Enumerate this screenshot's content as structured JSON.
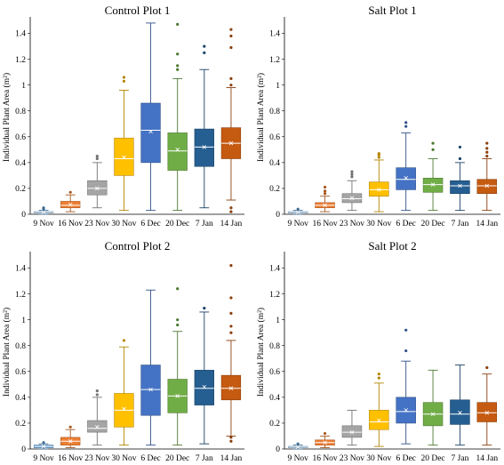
{
  "chart_data": [
    {
      "type": "box",
      "title": "Control Plot 1",
      "ylabel": "Individual Plant Area (m²)",
      "ylim": [
        0,
        1.5
      ],
      "yticks": [
        0,
        0.2,
        0.4,
        0.6,
        0.8,
        1,
        1.2,
        1.4
      ],
      "categories": [
        "9 Nov",
        "16 Nov",
        "23 Nov",
        "30 Nov",
        "6 Dec",
        "20 Dec",
        "7 Jan",
        "14 Jan"
      ],
      "boxes": [
        {
          "whislo": 0.0,
          "q1": 0.01,
          "med": 0.015,
          "q3": 0.02,
          "whishi": 0.03,
          "mean": 0.015,
          "fliers": [
            0.04,
            0.05
          ]
        },
        {
          "whislo": 0.02,
          "q1": 0.05,
          "med": 0.07,
          "q3": 0.1,
          "whishi": 0.15,
          "mean": 0.075,
          "fliers": [
            0.17
          ]
        },
        {
          "whislo": 0.05,
          "q1": 0.15,
          "med": 0.2,
          "q3": 0.26,
          "whishi": 0.4,
          "mean": 0.2,
          "fliers": [
            0.43,
            0.45
          ]
        },
        {
          "whislo": 0.03,
          "q1": 0.3,
          "med": 0.43,
          "q3": 0.59,
          "whishi": 0.96,
          "mean": 0.44,
          "fliers": [
            1.03,
            1.06
          ]
        },
        {
          "whislo": 0.03,
          "q1": 0.4,
          "med": 0.65,
          "q3": 0.86,
          "whishi": 1.48,
          "mean": 0.64,
          "fliers": []
        },
        {
          "whislo": 0.03,
          "q1": 0.34,
          "med": 0.49,
          "q3": 0.63,
          "whishi": 1.05,
          "mean": 0.5,
          "fliers": [
            1.12,
            1.15,
            1.24,
            1.47
          ]
        },
        {
          "whislo": 0.05,
          "q1": 0.37,
          "med": 0.52,
          "q3": 0.66,
          "whishi": 1.12,
          "mean": 0.52,
          "fliers": [
            1.25,
            1.3
          ]
        },
        {
          "whislo": 0.11,
          "q1": 0.43,
          "med": 0.55,
          "q3": 0.67,
          "whishi": 0.98,
          "mean": 0.55,
          "fliers": [
            0.02,
            0.05,
            1.0,
            1.05,
            1.29,
            1.38,
            1.43
          ]
        }
      ]
    },
    {
      "type": "box",
      "title": "Salt Plot 1",
      "ylabel": "Individual Plant Area (m²)",
      "ylim": [
        0,
        1.5
      ],
      "yticks": [
        0,
        0.2,
        0.4,
        0.6,
        0.8,
        1,
        1.2,
        1.4
      ],
      "categories": [
        "9 Nov",
        "16 Nov",
        "23 Nov",
        "30 Nov",
        "6 Dec",
        "20 Dec",
        "7 Jan",
        "14 Jan"
      ],
      "boxes": [
        {
          "whislo": 0.0,
          "q1": 0.01,
          "med": 0.015,
          "q3": 0.02,
          "whishi": 0.03,
          "mean": 0.015,
          "fliers": [
            0.04
          ]
        },
        {
          "whislo": 0.02,
          "q1": 0.05,
          "med": 0.07,
          "q3": 0.09,
          "whishi": 0.14,
          "mean": 0.07,
          "fliers": [
            0.16,
            0.18,
            0.21
          ]
        },
        {
          "whislo": 0.03,
          "q1": 0.09,
          "med": 0.12,
          "q3": 0.16,
          "whishi": 0.26,
          "mean": 0.125,
          "fliers": [
            0.29,
            0.31,
            0.33
          ]
        },
        {
          "whislo": 0.02,
          "q1": 0.14,
          "med": 0.19,
          "q3": 0.25,
          "whishi": 0.42,
          "mean": 0.19,
          "fliers": [
            0.44,
            0.46,
            0.47
          ]
        },
        {
          "whislo": 0.03,
          "q1": 0.19,
          "med": 0.27,
          "q3": 0.36,
          "whishi": 0.63,
          "mean": 0.28,
          "fliers": [
            0.68,
            0.71
          ]
        },
        {
          "whislo": 0.03,
          "q1": 0.17,
          "med": 0.23,
          "q3": 0.28,
          "whishi": 0.43,
          "mean": 0.23,
          "fliers": [
            0.5,
            0.55
          ]
        },
        {
          "whislo": 0.03,
          "q1": 0.16,
          "med": 0.22,
          "q3": 0.26,
          "whishi": 0.4,
          "mean": 0.22,
          "fliers": [
            0.43,
            0.52
          ]
        },
        {
          "whislo": 0.03,
          "q1": 0.16,
          "med": 0.22,
          "q3": 0.27,
          "whishi": 0.43,
          "mean": 0.22,
          "fliers": [
            0.45,
            0.48,
            0.51,
            0.55
          ]
        }
      ]
    },
    {
      "type": "box",
      "title": "Control Plot 2",
      "ylabel": "Individual Plant Area (m²)",
      "ylim": [
        0,
        1.5
      ],
      "yticks": [
        0,
        0.2,
        0.4,
        0.6,
        0.8,
        1,
        1.2,
        1.4
      ],
      "categories": [
        "9 Nov",
        "16 Nov",
        "23 Nov",
        "30 Nov",
        "6 Dec",
        "20 Dec",
        "7 Jan",
        "14 Jan"
      ],
      "boxes": [
        {
          "whislo": 0.0,
          "q1": 0.01,
          "med": 0.02,
          "q3": 0.03,
          "whishi": 0.04,
          "mean": 0.02,
          "fliers": [
            0.05
          ]
        },
        {
          "whislo": 0.01,
          "q1": 0.03,
          "med": 0.06,
          "q3": 0.09,
          "whishi": 0.15,
          "mean": 0.06,
          "fliers": [
            0.17
          ]
        },
        {
          "whislo": 0.03,
          "q1": 0.13,
          "med": 0.16,
          "q3": 0.22,
          "whishi": 0.4,
          "mean": 0.17,
          "fliers": [
            0.42,
            0.45
          ]
        },
        {
          "whislo": 0.03,
          "q1": 0.17,
          "med": 0.3,
          "q3": 0.43,
          "whishi": 0.79,
          "mean": 0.31,
          "fliers": [
            0.84
          ]
        },
        {
          "whislo": 0.03,
          "q1": 0.26,
          "med": 0.46,
          "q3": 0.65,
          "whishi": 1.23,
          "mean": 0.46,
          "fliers": []
        },
        {
          "whislo": 0.03,
          "q1": 0.28,
          "med": 0.41,
          "q3": 0.54,
          "whishi": 0.91,
          "mean": 0.41,
          "fliers": [
            0.96,
            1.0,
            1.24
          ]
        },
        {
          "whislo": 0.04,
          "q1": 0.34,
          "med": 0.47,
          "q3": 0.61,
          "whishi": 1.06,
          "mean": 0.48,
          "fliers": [
            1.09
          ]
        },
        {
          "whislo": 0.1,
          "q1": 0.38,
          "med": 0.47,
          "q3": 0.57,
          "whishi": 0.84,
          "mean": 0.47,
          "fliers": [
            0.06,
            0.09,
            0.9,
            0.95,
            1.05,
            1.17,
            1.42
          ]
        }
      ]
    },
    {
      "type": "box",
      "title": "Salt Plot 2",
      "ylabel": "Individual Plant Area (m²)",
      "ylim": [
        0,
        1.5
      ],
      "yticks": [
        0,
        0.2,
        0.4,
        0.6,
        0.8,
        1,
        1.2,
        1.4
      ],
      "categories": [
        "9 Nov",
        "16 Nov",
        "23 Nov",
        "30 Nov",
        "6 Dec",
        "20 Dec",
        "7 Jan",
        "14 Jan"
      ],
      "boxes": [
        {
          "whislo": 0.0,
          "q1": 0.01,
          "med": 0.015,
          "q3": 0.02,
          "whishi": 0.03,
          "mean": 0.015,
          "fliers": [
            0.04
          ]
        },
        {
          "whislo": 0.01,
          "q1": 0.03,
          "med": 0.05,
          "q3": 0.07,
          "whishi": 0.1,
          "mean": 0.05,
          "fliers": [
            0.12
          ]
        },
        {
          "whislo": 0.03,
          "q1": 0.09,
          "med": 0.13,
          "q3": 0.18,
          "whishi": 0.3,
          "mean": 0.13,
          "fliers": []
        },
        {
          "whislo": 0.02,
          "q1": 0.15,
          "med": 0.21,
          "q3": 0.3,
          "whishi": 0.51,
          "mean": 0.22,
          "fliers": [
            0.55,
            0.58
          ]
        },
        {
          "whislo": 0.04,
          "q1": 0.2,
          "med": 0.29,
          "q3": 0.4,
          "whishi": 0.68,
          "mean": 0.3,
          "fliers": [
            0.76,
            0.92
          ]
        },
        {
          "whislo": 0.03,
          "q1": 0.18,
          "med": 0.27,
          "q3": 0.36,
          "whishi": 0.61,
          "mean": 0.27,
          "fliers": []
        },
        {
          "whislo": 0.03,
          "q1": 0.19,
          "med": 0.27,
          "q3": 0.38,
          "whishi": 0.65,
          "mean": 0.28,
          "fliers": []
        },
        {
          "whislo": 0.03,
          "q1": 0.21,
          "med": 0.28,
          "q3": 0.36,
          "whishi": 0.58,
          "mean": 0.28,
          "fliers": [
            0.63
          ]
        }
      ]
    }
  ],
  "colors": {
    "box_fills": [
      "#5b9bd5",
      "#ed7d31",
      "#a5a5a5",
      "#ffc000",
      "#4472c4",
      "#70ad47",
      "#255e91",
      "#c55a11"
    ],
    "outline": "#000000",
    "grid": "none"
  }
}
